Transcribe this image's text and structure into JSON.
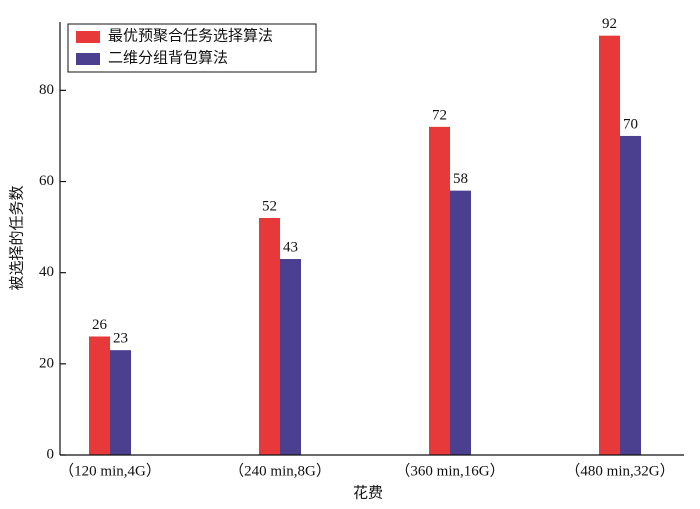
{
  "chart_data": {
    "type": "bar",
    "x_label": "花费",
    "y_label": "被选择的任务数",
    "categories": [
      "（120 min,4G）",
      "（240 min,8G）",
      "（360 min,16G）",
      "（480 min,32G）"
    ],
    "series": [
      {
        "name": "最优预聚合任务选择算法",
        "color": "#e8393a",
        "values": [
          26,
          52,
          72,
          92
        ]
      },
      {
        "name": "二维分组背包算法",
        "color": "#4b3f8f",
        "values": [
          23,
          43,
          58,
          70
        ]
      }
    ],
    "ylim": [
      0,
      95
    ],
    "yticks": [
      0,
      20,
      40,
      60,
      80
    ],
    "legend": "upper left"
  }
}
